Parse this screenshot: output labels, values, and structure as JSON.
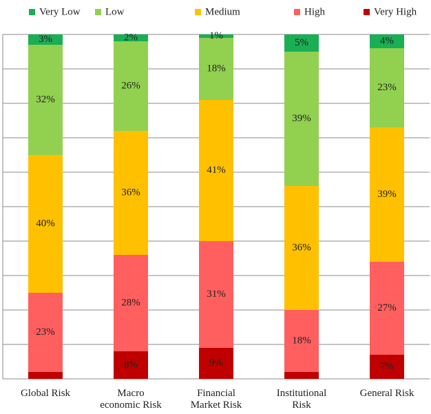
{
  "chart_data": {
    "type": "stacked_bar",
    "categories": [
      "Global Risk",
      "Macro economic Risk",
      "Financial Market Risk",
      "Institutional Risk",
      "General Risk"
    ],
    "series": [
      {
        "name": "Very Low",
        "color": "#1aaf54",
        "values": [
          3,
          2,
          1,
          5,
          4
        ],
        "value_labels": [
          "3%",
          "2%",
          "1%",
          "5%",
          "4%"
        ]
      },
      {
        "name": "Low",
        "color": "#92d050",
        "values": [
          32,
          26,
          18,
          39,
          23
        ],
        "value_labels": [
          "32%",
          "26%",
          "18%",
          "39%",
          "23%"
        ]
      },
      {
        "name": "Medium",
        "color": "#ffc000",
        "values": [
          40,
          36,
          41,
          36,
          39
        ],
        "value_labels": [
          "40%",
          "36%",
          "41%",
          "36%",
          "39%"
        ]
      },
      {
        "name": "High",
        "color": "#ff5f5f",
        "values": [
          23,
          28,
          31,
          18,
          27
        ],
        "value_labels": [
          "23%",
          "28%",
          "31%",
          "18%",
          "27%"
        ]
      },
      {
        "name": "Very High",
        "color": "#c00000",
        "values": [
          2,
          8,
          9,
          2,
          7
        ],
        "value_labels": [
          null,
          "8%",
          "9%",
          null,
          "7%"
        ]
      }
    ],
    "ylim": [
      0,
      100
    ],
    "yticks": [
      0,
      10,
      20,
      30,
      40,
      50,
      60,
      70,
      80,
      90,
      100
    ],
    "grid": true,
    "legend": "top"
  }
}
